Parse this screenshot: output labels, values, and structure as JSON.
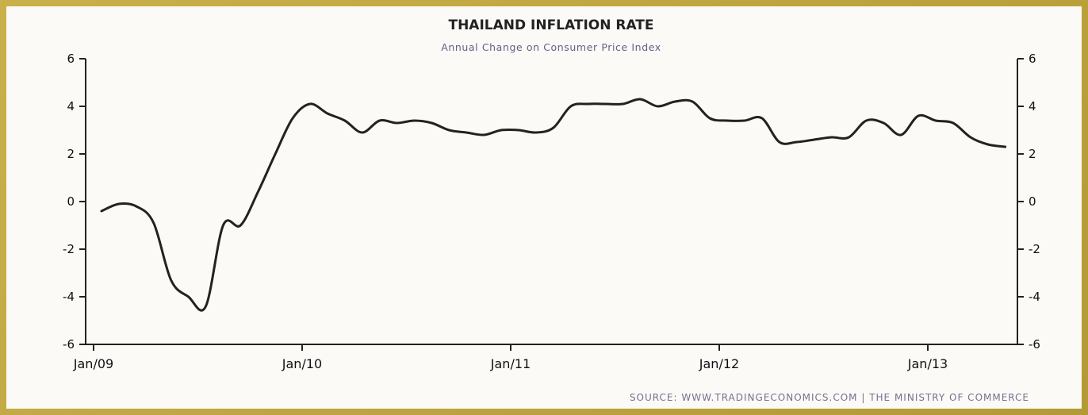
{
  "chart_data": {
    "type": "line",
    "title": "THAILAND INFLATION RATE",
    "subtitle": "Annual Change on Consumer Price Index",
    "source": "SOURCE: WWW.TRADINGECONOMICS.COM | THE MINISTRY OF COMMERCE",
    "xlabel": "",
    "ylabel": "",
    "ylim": [
      -6,
      6
    ],
    "yticks": [
      6,
      4,
      2,
      0,
      -2,
      -4,
      -6
    ],
    "xticks": [
      "Jan/09",
      "Jan/10",
      "Jan/11",
      "Jan/12",
      "Jan/13"
    ],
    "grid": false,
    "line_color": "#222222",
    "series": [
      {
        "x": [
          "2009-01",
          "2009-02",
          "2009-03",
          "2009-04",
          "2009-05",
          "2009-06",
          "2009-07",
          "2009-08",
          "2009-09",
          "2009-10",
          "2009-11",
          "2009-12",
          "2010-01",
          "2010-02",
          "2010-03",
          "2010-04",
          "2010-05",
          "2010-06",
          "2010-07",
          "2010-08",
          "2010-09",
          "2010-10",
          "2010-11",
          "2010-12",
          "2011-01",
          "2011-02",
          "2011-03",
          "2011-04",
          "2011-05",
          "2011-06",
          "2011-07",
          "2011-08",
          "2011-09",
          "2011-10",
          "2011-11",
          "2011-12",
          "2012-01",
          "2012-02",
          "2012-03",
          "2012-04",
          "2012-05",
          "2012-06",
          "2012-07",
          "2012-08",
          "2012-09",
          "2012-10",
          "2012-11",
          "2012-12",
          "2013-01",
          "2013-02",
          "2013-03",
          "2013-04",
          "2013-05"
        ],
        "values": [
          -0.4,
          -0.1,
          -0.2,
          -0.9,
          -3.3,
          -4.0,
          -4.4,
          -1.0,
          -1.0,
          0.4,
          2.0,
          3.5,
          4.1,
          3.7,
          3.4,
          2.9,
          3.4,
          3.3,
          3.4,
          3.3,
          3.0,
          2.9,
          2.8,
          3.0,
          3.0,
          2.9,
          3.1,
          4.0,
          4.1,
          4.1,
          4.1,
          4.3,
          4.0,
          4.2,
          4.2,
          3.5,
          3.4,
          3.4,
          3.5,
          2.5,
          2.5,
          2.6,
          2.7,
          2.7,
          3.4,
          3.3,
          2.8,
          3.6,
          3.4,
          3.3,
          2.7,
          2.4,
          2.3
        ]
      }
    ]
  }
}
